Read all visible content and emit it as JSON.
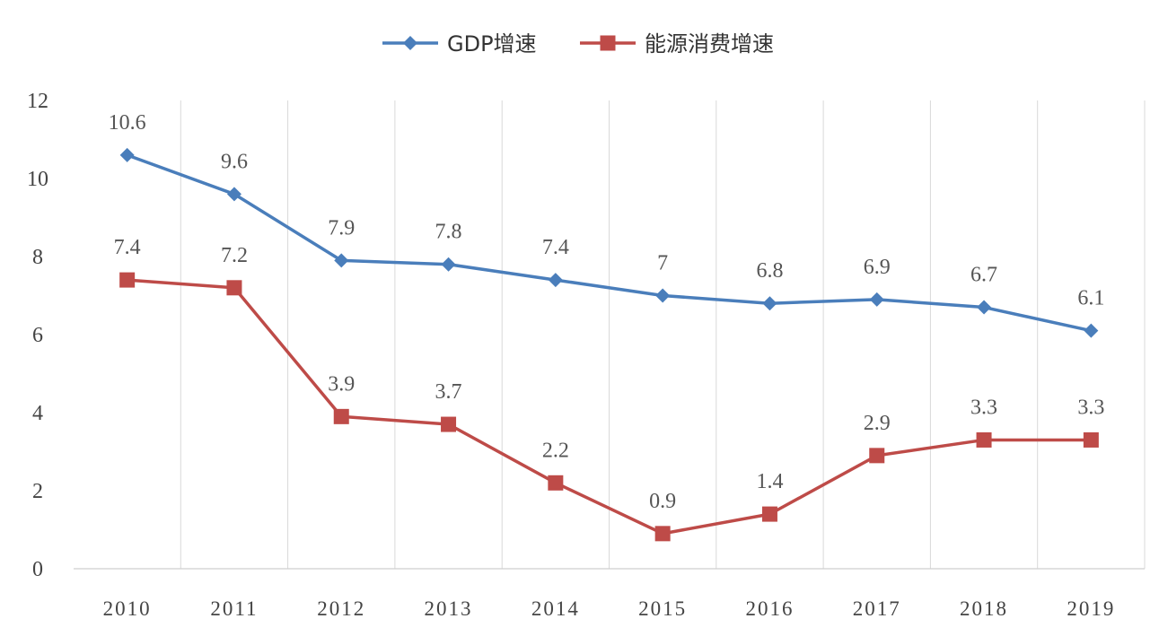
{
  "chart_data": {
    "type": "line",
    "title": "",
    "xlabel": "",
    "ylabel": "",
    "categories": [
      "2010",
      "2011",
      "2012",
      "2013",
      "2014",
      "2015",
      "2016",
      "2017",
      "2018",
      "2019"
    ],
    "ylim": [
      0,
      12
    ],
    "yticks": [
      0,
      2,
      4,
      6,
      8,
      10,
      12
    ],
    "grid": "vertical",
    "legend_position": "top-center",
    "series": [
      {
        "name": "GDP增速",
        "color": "#4a7ebb",
        "marker": "diamond",
        "values": [
          10.6,
          9.6,
          7.9,
          7.8,
          7.4,
          7,
          6.8,
          6.9,
          6.7,
          6.1
        ]
      },
      {
        "name": "能源消费增速",
        "color": "#be4b48",
        "marker": "square",
        "values": [
          7.4,
          7.2,
          3.9,
          3.7,
          2.2,
          0.9,
          1.4,
          2.9,
          3.3,
          3.3
        ]
      }
    ]
  }
}
